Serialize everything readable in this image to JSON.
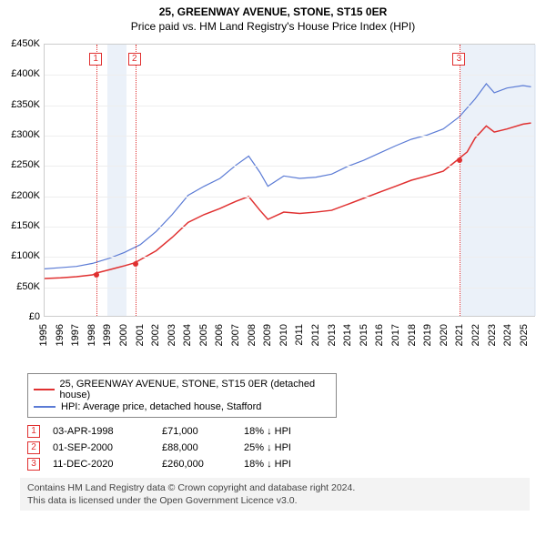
{
  "header": {
    "line1": "25, GREENWAY AVENUE, STONE, ST15 0ER",
    "line2": "Price paid vs. HM Land Registry's House Price Index (HPI)"
  },
  "chart": {
    "type": "line",
    "x_years": [
      1995,
      1996,
      1997,
      1998,
      1999,
      2000,
      2001,
      2002,
      2003,
      2004,
      2005,
      2006,
      2007,
      2008,
      2009,
      2010,
      2011,
      2012,
      2013,
      2014,
      2015,
      2016,
      2017,
      2018,
      2019,
      2020,
      2021,
      2022,
      2023,
      2024,
      2025
    ],
    "xlim": [
      1995,
      2025.7
    ],
    "ylim": [
      0,
      450000
    ],
    "ytick_step": 50000,
    "y_prefix": "£",
    "y_suffix": "K",
    "y_divisor": 1000,
    "grid_color": "#eeeeee",
    "border_color": "#cccccc",
    "background_color": "#ffffff",
    "shaded_bands": [
      {
        "from": 1998.9,
        "to": 2000.1,
        "color": "#e6eef7"
      },
      {
        "from": 2021.0,
        "to": 2025.7,
        "color": "#e6eef7"
      }
    ],
    "event_vlines": [
      {
        "x": 1998.25,
        "label": "1"
      },
      {
        "x": 2000.67,
        "label": "2"
      },
      {
        "x": 2020.95,
        "label": "3"
      }
    ],
    "series": [
      {
        "name": "25, GREENWAY AVENUE, STONE, ST15 0ER (detached house)",
        "color": "#e03030",
        "line_width": 1.5,
        "data": [
          [
            1995.0,
            62000
          ],
          [
            1996.0,
            63000
          ],
          [
            1997.0,
            65000
          ],
          [
            1998.0,
            68000
          ],
          [
            1998.25,
            71000
          ],
          [
            1999.0,
            76000
          ],
          [
            2000.0,
            83000
          ],
          [
            2000.67,
            88000
          ],
          [
            2001.0,
            93000
          ],
          [
            2002.0,
            108000
          ],
          [
            2003.0,
            130000
          ],
          [
            2004.0,
            155000
          ],
          [
            2005.0,
            168000
          ],
          [
            2006.0,
            178000
          ],
          [
            2007.0,
            190000
          ],
          [
            2007.8,
            198000
          ],
          [
            2008.5,
            175000
          ],
          [
            2009.0,
            160000
          ],
          [
            2010.0,
            172000
          ],
          [
            2011.0,
            170000
          ],
          [
            2012.0,
            172000
          ],
          [
            2013.0,
            175000
          ],
          [
            2014.0,
            185000
          ],
          [
            2015.0,
            195000
          ],
          [
            2016.0,
            205000
          ],
          [
            2017.0,
            215000
          ],
          [
            2018.0,
            225000
          ],
          [
            2019.0,
            232000
          ],
          [
            2020.0,
            240000
          ],
          [
            2020.95,
            260000
          ],
          [
            2021.5,
            272000
          ],
          [
            2022.0,
            295000
          ],
          [
            2022.7,
            315000
          ],
          [
            2023.2,
            305000
          ],
          [
            2024.0,
            310000
          ],
          [
            2025.0,
            318000
          ],
          [
            2025.5,
            320000
          ]
        ],
        "markers": [
          {
            "x": 1998.25,
            "y": 71000
          },
          {
            "x": 2000.67,
            "y": 88000
          },
          {
            "x": 2020.95,
            "y": 260000
          }
        ]
      },
      {
        "name": "HPI: Average price, detached house, Stafford",
        "color": "#5b7bd5",
        "line_width": 1.2,
        "data": [
          [
            1995.0,
            78000
          ],
          [
            1996.0,
            80000
          ],
          [
            1997.0,
            82000
          ],
          [
            1998.0,
            87000
          ],
          [
            1999.0,
            95000
          ],
          [
            2000.0,
            105000
          ],
          [
            2001.0,
            118000
          ],
          [
            2002.0,
            140000
          ],
          [
            2003.0,
            168000
          ],
          [
            2004.0,
            200000
          ],
          [
            2005.0,
            215000
          ],
          [
            2006.0,
            228000
          ],
          [
            2007.0,
            250000
          ],
          [
            2007.8,
            265000
          ],
          [
            2008.5,
            238000
          ],
          [
            2009.0,
            215000
          ],
          [
            2010.0,
            232000
          ],
          [
            2011.0,
            228000
          ],
          [
            2012.0,
            230000
          ],
          [
            2013.0,
            235000
          ],
          [
            2014.0,
            248000
          ],
          [
            2015.0,
            258000
          ],
          [
            2016.0,
            270000
          ],
          [
            2017.0,
            282000
          ],
          [
            2018.0,
            293000
          ],
          [
            2019.0,
            300000
          ],
          [
            2020.0,
            310000
          ],
          [
            2021.0,
            330000
          ],
          [
            2022.0,
            360000
          ],
          [
            2022.7,
            385000
          ],
          [
            2023.2,
            370000
          ],
          [
            2024.0,
            378000
          ],
          [
            2025.0,
            382000
          ],
          [
            2025.5,
            380000
          ]
        ]
      }
    ]
  },
  "legend": [
    {
      "color": "#e03030",
      "label": "25, GREENWAY AVENUE, STONE, ST15 0ER (detached house)"
    },
    {
      "color": "#5b7bd5",
      "label": "HPI: Average price, detached house, Stafford"
    }
  ],
  "events": [
    {
      "num": "1",
      "date": "03-APR-1998",
      "value": "£71,000",
      "delta": "18% ↓ HPI"
    },
    {
      "num": "2",
      "date": "01-SEP-2000",
      "value": "£88,000",
      "delta": "25% ↓ HPI"
    },
    {
      "num": "3",
      "date": "11-DEC-2020",
      "value": "£260,000",
      "delta": "18% ↓ HPI"
    }
  ],
  "footer": {
    "line1": "Contains HM Land Registry data © Crown copyright and database right 2024.",
    "line2": "This data is licensed under the Open Government Licence v3.0."
  },
  "marker_box_color": "#e03030"
}
